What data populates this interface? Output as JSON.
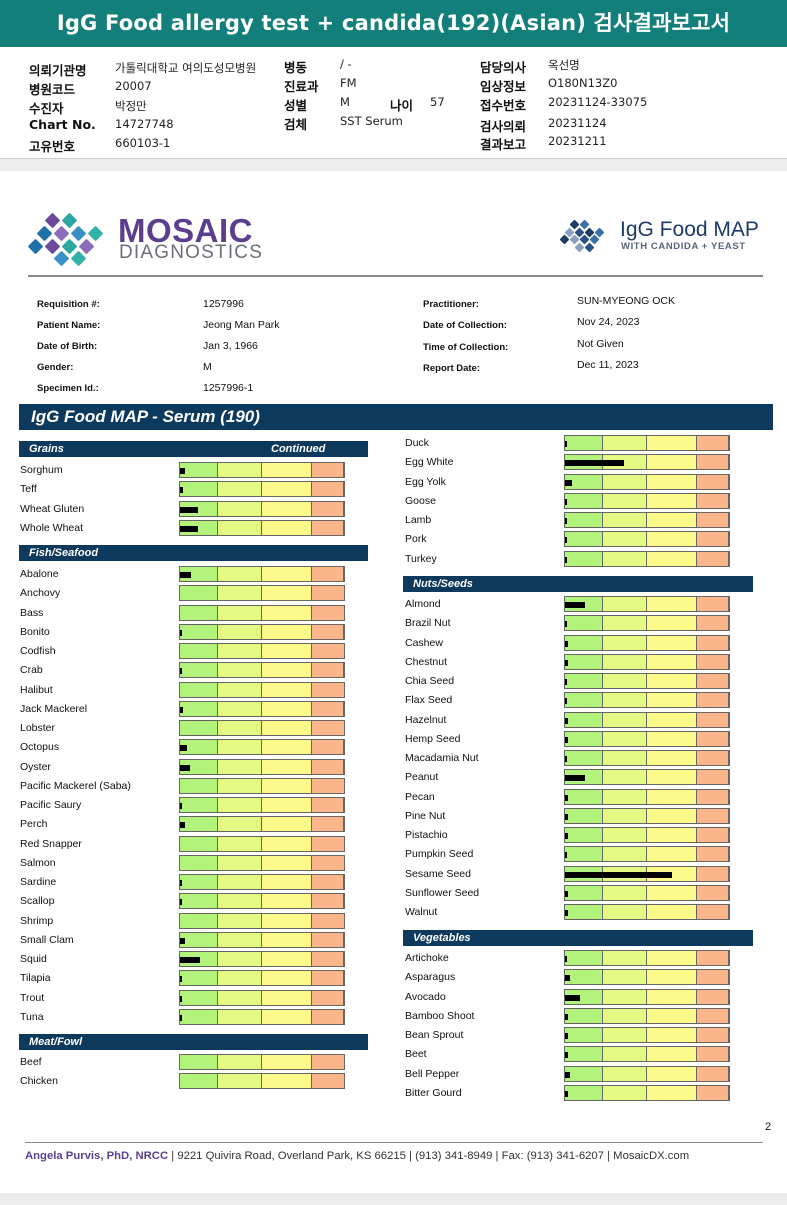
{
  "banner_title": "IgG Food allergy test + candida(192)(Asian) 검사결과보고서",
  "korean_header": {
    "left": [
      {
        "label": "의뢰기관명",
        "value": "가톨릭대학교 여의도성모병원"
      },
      {
        "label": "병원코드",
        "value": "20007"
      },
      {
        "label": "수진자",
        "value": "박정만"
      },
      {
        "label": "Chart No.",
        "value": "14727748"
      },
      {
        "label": "고유번호",
        "value": "660103-1"
      }
    ],
    "middle": [
      {
        "label": "병동",
        "value": "/ -"
      },
      {
        "label": "진료과",
        "value": "FM"
      },
      {
        "label": "성별",
        "value": "M"
      },
      {
        "label": "검체",
        "value": "SST Serum"
      }
    ],
    "age": {
      "label": "나이",
      "value": "57"
    },
    "right": [
      {
        "label": "담당의사",
        "value": "옥선명"
      },
      {
        "label": "임상정보",
        "value": "O180N13Z0"
      },
      {
        "label": "접수번호",
        "value": "20231124-33075"
      },
      {
        "label": "검사의뢰",
        "value": "20231124"
      },
      {
        "label": "결과보고",
        "value": "20231211"
      }
    ]
  },
  "logos": {
    "mosaic": "MOSAIC",
    "diagnostics": "DIAGNOSTICS",
    "map_title": "IgG Food MAP",
    "map_subtitle": "WITH CANDIDA + YEAST"
  },
  "patient": {
    "left": [
      {
        "label": "Requisition #:",
        "value": "1257996"
      },
      {
        "label": "Patient Name:",
        "value": "Jeong Man Park"
      },
      {
        "label": "Date of Birth:",
        "value": "Jan 3, 1966"
      },
      {
        "label": "Gender:",
        "value": "M"
      },
      {
        "label": "Specimen Id.:",
        "value": "1257996-1"
      }
    ],
    "right": [
      {
        "label": "Practitioner:",
        "value": "SUN-MYEONG OCK"
      },
      {
        "label": "Date of Collection:",
        "value": "Nov 24, 2023"
      },
      {
        "label": "Time of Collection:",
        "value": "Not Given"
      },
      {
        "label": "Report Date:",
        "value": "Dec 11, 2023"
      }
    ]
  },
  "panel_title": "IgG Food MAP - Serum (190)",
  "continued_label": "Continued",
  "sections": [
    {
      "title": "Grains",
      "items": [
        {
          "name": "Sorghum",
          "level": 0.03
        },
        {
          "name": "Teff",
          "level": 0.02
        },
        {
          "name": "Wheat Gluten",
          "level": 0.11
        },
        {
          "name": "Whole Wheat",
          "level": 0.11
        }
      ]
    },
    {
      "title": "Fish/Seafood",
      "items": [
        {
          "name": "Abalone",
          "level": 0.07
        },
        {
          "name": "Anchovy",
          "level": 0.0
        },
        {
          "name": "Bass",
          "level": 0.0
        },
        {
          "name": "Bonito",
          "level": 0.01
        },
        {
          "name": "Codfish",
          "level": 0.0
        },
        {
          "name": "Crab",
          "level": 0.01
        },
        {
          "name": "Halibut",
          "level": 0.0
        },
        {
          "name": "Jack Mackerel",
          "level": 0.02
        },
        {
          "name": "Lobster",
          "level": 0.0
        },
        {
          "name": "Octopus",
          "level": 0.04
        },
        {
          "name": "Oyster",
          "level": 0.06
        },
        {
          "name": "Pacific Mackerel (Saba)",
          "level": 0.0
        },
        {
          "name": "Pacific Saury",
          "level": 0.005
        },
        {
          "name": "Perch",
          "level": 0.03
        },
        {
          "name": "Red Snapper",
          "level": 0.0
        },
        {
          "name": "Salmon",
          "level": 0.0
        },
        {
          "name": "Sardine",
          "level": 0.005
        },
        {
          "name": "Scallop",
          "level": 0.005
        },
        {
          "name": "Shrimp",
          "level": 0.0
        },
        {
          "name": "Small Clam",
          "level": 0.03
        },
        {
          "name": "Squid",
          "level": 0.12
        },
        {
          "name": "Tilapia",
          "level": 0.005
        },
        {
          "name": "Trout",
          "level": 0.005
        },
        {
          "name": "Tuna",
          "level": 0.005
        }
      ]
    },
    {
      "title": "Meat/Fowl",
      "items": [
        {
          "name": "Beef",
          "level": 0.0
        },
        {
          "name": "Chicken",
          "level": 0.0
        }
      ]
    },
    {
      "title": "",
      "items": [
        {
          "name": "Duck",
          "level": 0.005
        },
        {
          "name": "Egg White",
          "level": 0.36
        },
        {
          "name": "Egg Yolk",
          "level": 0.04
        },
        {
          "name": "Goose",
          "level": 0.005
        },
        {
          "name": "Lamb",
          "level": 0.005
        },
        {
          "name": "Pork",
          "level": 0.005
        },
        {
          "name": "Turkey",
          "level": 0.005
        }
      ]
    },
    {
      "title": "Nuts/Seeds",
      "items": [
        {
          "name": "Almond",
          "level": 0.12
        },
        {
          "name": "Brazil Nut",
          "level": 0.005
        },
        {
          "name": "Cashew",
          "level": 0.02
        },
        {
          "name": "Chestnut",
          "level": 0.02
        },
        {
          "name": "Chia Seed",
          "level": 0.005
        },
        {
          "name": "Flax Seed",
          "level": 0.005
        },
        {
          "name": "Hazelnut",
          "level": 0.02
        },
        {
          "name": "Hemp Seed",
          "level": 0.02
        },
        {
          "name": "Macadamia Nut",
          "level": 0.005
        },
        {
          "name": "Peanut",
          "level": 0.12
        },
        {
          "name": "Pecan",
          "level": 0.02
        },
        {
          "name": "Pine Nut",
          "level": 0.02
        },
        {
          "name": "Pistachio",
          "level": 0.02
        },
        {
          "name": "Pumpkin Seed",
          "level": 0.005
        },
        {
          "name": "Sesame Seed",
          "level": 0.65
        },
        {
          "name": "Sunflower Seed",
          "level": 0.02
        },
        {
          "name": "Walnut",
          "level": 0.02
        }
      ]
    },
    {
      "title": "Vegetables",
      "items": [
        {
          "name": "Artichoke",
          "level": 0.005
        },
        {
          "name": "Asparagus",
          "level": 0.03
        },
        {
          "name": "Avocado",
          "level": 0.09
        },
        {
          "name": "Bamboo Shoot",
          "level": 0.02
        },
        {
          "name": "Bean Sprout",
          "level": 0.02
        },
        {
          "name": "Beet",
          "level": 0.02
        },
        {
          "name": "Bell Pepper",
          "level": 0.03
        },
        {
          "name": "Bitter Gourd",
          "level": 0.02
        }
      ]
    }
  ],
  "page_number": "2",
  "footer": {
    "name": "Angela Purvis, PhD, NRCC",
    "rest": " | 9221 Quivira Road, Overland Park, KS 66215  |  (913) 341-8949  |  Fax: (913) 341-6207 | MosaicDX.com"
  }
}
